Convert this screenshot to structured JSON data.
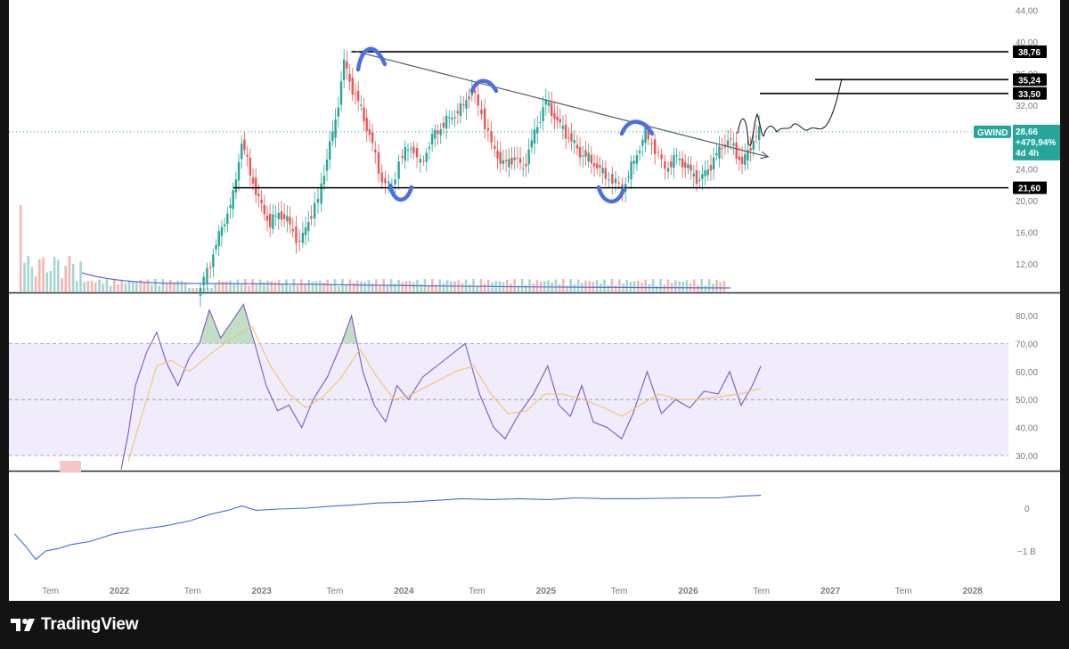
{
  "chart_data": {
    "type": "candlestick",
    "ticker": "GWIND",
    "last_price": "28,66",
    "change_pct": "+479,94%",
    "countdown": "4d 4h",
    "price_axis_ticks": [
      "44,00",
      "40,00",
      "36,00",
      "32,00",
      "28,00",
      "24,00",
      "20,00",
      "16,00",
      "12,00"
    ],
    "price_ylim": [
      8,
      46
    ],
    "time_axis_labels": [
      "Tem",
      "2022",
      "Tem",
      "2023",
      "Tem",
      "2024",
      "Tem",
      "2025",
      "Tem",
      "2026",
      "Tem",
      "2027",
      "Tem",
      "2028"
    ],
    "levels": [
      {
        "value": 38.76,
        "label": "38,76"
      },
      {
        "value": 35.24,
        "label": "35,24"
      },
      {
        "value": 33.5,
        "label": "33,50"
      },
      {
        "value": 21.6,
        "label": "21,60"
      }
    ],
    "trendline": {
      "from": [
        2023.65,
        38.8
      ],
      "to": [
        2026.55,
        25.5
      ]
    },
    "price_series": [
      [
        2022.55,
        8.0
      ],
      [
        2022.62,
        11.0
      ],
      [
        2022.68,
        14.5
      ],
      [
        2022.74,
        17.5
      ],
      [
        2022.8,
        20.5
      ],
      [
        2022.86,
        27.5
      ],
      [
        2022.92,
        23.5
      ],
      [
        2022.98,
        20.0
      ],
      [
        2023.06,
        17.0
      ],
      [
        2023.12,
        18.5
      ],
      [
        2023.2,
        17.0
      ],
      [
        2023.27,
        14.5
      ],
      [
        2023.33,
        17.5
      ],
      [
        2023.4,
        20.0
      ],
      [
        2023.46,
        25.5
      ],
      [
        2023.52,
        30.0
      ],
      [
        2023.58,
        37.5
      ],
      [
        2023.62,
        35.0
      ],
      [
        2023.7,
        31.5
      ],
      [
        2023.78,
        27.0
      ],
      [
        2023.85,
        22.5
      ],
      [
        2023.92,
        21.6
      ],
      [
        2023.97,
        25.0
      ],
      [
        2024.05,
        27.0
      ],
      [
        2024.12,
        24.5
      ],
      [
        2024.2,
        28.0
      ],
      [
        2024.3,
        30.0
      ],
      [
        2024.4,
        31.5
      ],
      [
        2024.48,
        34.0
      ],
      [
        2024.55,
        31.0
      ],
      [
        2024.62,
        27.0
      ],
      [
        2024.7,
        24.5
      ],
      [
        2024.78,
        25.5
      ],
      [
        2024.84,
        24.0
      ],
      [
        2024.92,
        28.5
      ],
      [
        2025.0,
        32.5
      ],
      [
        2025.08,
        30.0
      ],
      [
        2025.16,
        28.0
      ],
      [
        2025.24,
        26.0
      ],
      [
        2025.32,
        25.0
      ],
      [
        2025.4,
        23.5
      ],
      [
        2025.47,
        22.5
      ],
      [
        2025.54,
        21.5
      ],
      [
        2025.62,
        25.0
      ],
      [
        2025.7,
        28.5
      ],
      [
        2025.77,
        26.5
      ],
      [
        2025.84,
        24.0
      ],
      [
        2025.92,
        25.5
      ],
      [
        2026.0,
        24.0
      ],
      [
        2026.08,
        22.5
      ],
      [
        2026.16,
        24.5
      ],
      [
        2026.24,
        27.0
      ],
      [
        2026.3,
        27.5
      ],
      [
        2026.38,
        24.5
      ],
      [
        2026.44,
        27.0
      ],
      [
        2026.5,
        28.66
      ]
    ],
    "rsi": {
      "ticks": [
        "80,00",
        "70,00",
        "60,00",
        "50,00",
        "40,00",
        "30,00"
      ],
      "ylim": [
        25,
        85
      ],
      "upper_band": 70,
      "lower_band": 30,
      "mid": 50,
      "series": [
        [
          2022.0,
          25
        ],
        [
          2022.05,
          38
        ],
        [
          2022.1,
          55
        ],
        [
          2022.18,
          67
        ],
        [
          2022.25,
          74
        ],
        [
          2022.32,
          63
        ],
        [
          2022.4,
          55
        ],
        [
          2022.48,
          65
        ],
        [
          2022.55,
          70
        ],
        [
          2022.62,
          82
        ],
        [
          2022.7,
          72
        ],
        [
          2022.78,
          78
        ],
        [
          2022.86,
          84
        ],
        [
          2022.94,
          70
        ],
        [
          2023.02,
          55
        ],
        [
          2023.1,
          46
        ],
        [
          2023.18,
          48
        ],
        [
          2023.27,
          40
        ],
        [
          2023.35,
          50
        ],
        [
          2023.45,
          58
        ],
        [
          2023.55,
          70
        ],
        [
          2023.62,
          80
        ],
        [
          2023.7,
          60
        ],
        [
          2023.78,
          48
        ],
        [
          2023.86,
          42
        ],
        [
          2023.94,
          55
        ],
        [
          2024.02,
          50
        ],
        [
          2024.12,
          58
        ],
        [
          2024.22,
          62
        ],
        [
          2024.32,
          66
        ],
        [
          2024.42,
          70
        ],
        [
          2024.52,
          52
        ],
        [
          2024.62,
          40
        ],
        [
          2024.7,
          36
        ],
        [
          2024.8,
          45
        ],
        [
          2024.9,
          52
        ],
        [
          2025.0,
          62
        ],
        [
          2025.08,
          48
        ],
        [
          2025.16,
          44
        ],
        [
          2025.24,
          55
        ],
        [
          2025.32,
          42
        ],
        [
          2025.42,
          40
        ],
        [
          2025.52,
          36
        ],
        [
          2025.6,
          45
        ],
        [
          2025.7,
          60
        ],
        [
          2025.8,
          45
        ],
        [
          2025.9,
          50
        ],
        [
          2026.0,
          47
        ],
        [
          2026.1,
          53
        ],
        [
          2026.2,
          52
        ],
        [
          2026.28,
          60
        ],
        [
          2026.36,
          48
        ],
        [
          2026.44,
          55
        ],
        [
          2026.5,
          62
        ]
      ],
      "ma_series": [
        [
          2022.05,
          28
        ],
        [
          2022.15,
          45
        ],
        [
          2022.25,
          62
        ],
        [
          2022.35,
          64
        ],
        [
          2022.48,
          60
        ],
        [
          2022.62,
          66
        ],
        [
          2022.78,
          72
        ],
        [
          2022.92,
          76
        ],
        [
          2023.05,
          62
        ],
        [
          2023.18,
          52
        ],
        [
          2023.3,
          47
        ],
        [
          2023.42,
          51
        ],
        [
          2023.55,
          58
        ],
        [
          2023.68,
          68
        ],
        [
          2023.8,
          58
        ],
        [
          2023.92,
          50
        ],
        [
          2024.05,
          52
        ],
        [
          2024.2,
          56
        ],
        [
          2024.35,
          60
        ],
        [
          2024.48,
          62
        ],
        [
          2024.6,
          52
        ],
        [
          2024.72,
          45
        ],
        [
          2024.85,
          46
        ],
        [
          2024.98,
          52
        ],
        [
          2025.1,
          52
        ],
        [
          2025.25,
          50
        ],
        [
          2025.4,
          47
        ],
        [
          2025.52,
          44
        ],
        [
          2025.65,
          48
        ],
        [
          2025.78,
          52
        ],
        [
          2025.92,
          50
        ],
        [
          2026.05,
          50
        ],
        [
          2026.2,
          51
        ],
        [
          2026.35,
          52
        ],
        [
          2026.5,
          54
        ]
      ]
    },
    "flow": {
      "ticks": [
        "0",
        "−1 B"
      ],
      "ylim": [
        -1.3,
        0.3
      ],
      "series": [
        [
          2021.25,
          -0.6
        ],
        [
          2021.33,
          -0.9
        ],
        [
          2021.4,
          -1.2
        ],
        [
          2021.47,
          -1.0
        ],
        [
          2021.55,
          -0.95
        ],
        [
          2021.65,
          -0.85
        ],
        [
          2021.78,
          -0.78
        ],
        [
          2021.95,
          -0.6
        ],
        [
          2022.12,
          -0.5
        ],
        [
          2022.3,
          -0.42
        ],
        [
          2022.48,
          -0.3
        ],
        [
          2022.62,
          -0.15
        ],
        [
          2022.75,
          -0.05
        ],
        [
          2022.85,
          0.05
        ],
        [
          2022.95,
          -0.05
        ],
        [
          2023.1,
          -0.02
        ],
        [
          2023.3,
          0.0
        ],
        [
          2023.5,
          0.05
        ],
        [
          2023.65,
          0.08
        ],
        [
          2023.8,
          0.12
        ],
        [
          2024.0,
          0.14
        ],
        [
          2024.2,
          0.18
        ],
        [
          2024.4,
          0.22
        ],
        [
          2024.6,
          0.2
        ],
        [
          2024.8,
          0.22
        ],
        [
          2025.0,
          0.2
        ],
        [
          2025.2,
          0.24
        ],
        [
          2025.4,
          0.22
        ],
        [
          2025.6,
          0.22
        ],
        [
          2025.8,
          0.23
        ],
        [
          2026.0,
          0.24
        ],
        [
          2026.2,
          0.24
        ],
        [
          2026.35,
          0.28
        ],
        [
          2026.5,
          0.3
        ]
      ]
    }
  },
  "footer": {
    "brand": "TradingView"
  }
}
